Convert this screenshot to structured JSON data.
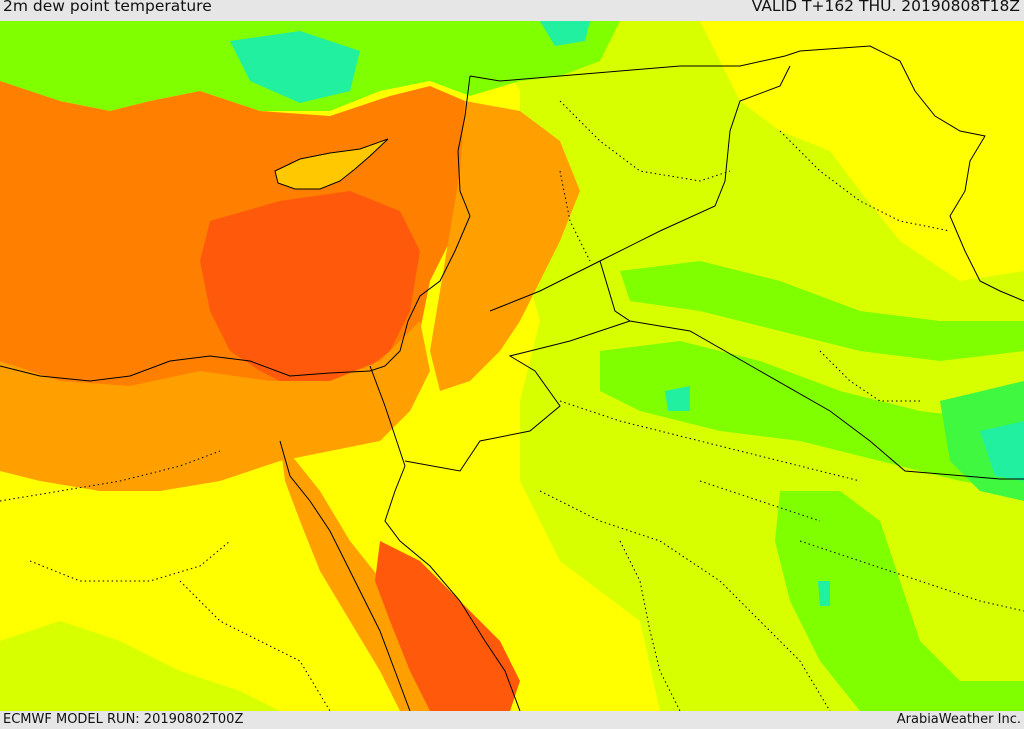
{
  "header": {
    "title": "2m dew point temperature",
    "valid": "VALID T+162 THU. 20190808T18Z"
  },
  "footer": {
    "model_run": "ECMWF MODEL RUN: 20190802T00Z",
    "credit": "ArabiaWeather Inc."
  },
  "colors": {
    "dark_orange": "#ff5a0c",
    "orange": "#ff8000",
    "light_orange": "#ffa000",
    "yellow_orange": "#ffc800",
    "yellow": "#ffff00",
    "yellow_green": "#d8ff00",
    "green": "#80ff00",
    "bright_green": "#40f840",
    "teal": "#20f0a0",
    "border": "#000000"
  }
}
